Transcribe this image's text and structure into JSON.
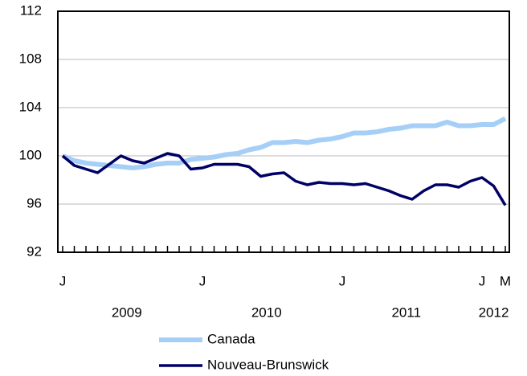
{
  "chart_data": {
    "type": "line",
    "categories": [
      "J",
      null,
      null,
      null,
      null,
      null,
      null,
      null,
      null,
      null,
      null,
      null,
      "J",
      null,
      null,
      null,
      null,
      null,
      null,
      null,
      null,
      null,
      null,
      null,
      "J",
      null,
      null,
      null,
      null,
      null,
      null,
      null,
      null,
      null,
      null,
      null,
      "J",
      null,
      "M"
    ],
    "x_groups": [
      "2009",
      "2010",
      "2011",
      "2012"
    ],
    "series": [
      {
        "name": "Canada",
        "color": "#a6cff7",
        "values": [
          100,
          99.6,
          99.4,
          99.3,
          99.2,
          99.1,
          99.0,
          99.1,
          99.3,
          99.4,
          99.4,
          99.7,
          99.8,
          99.9,
          100.1,
          100.2,
          100.5,
          100.7,
          101.1,
          101.1,
          101.2,
          101.1,
          101.3,
          101.4,
          101.6,
          101.9,
          101.9,
          102.0,
          102.2,
          102.3,
          102.5,
          102.5,
          102.5,
          102.8,
          102.5,
          102.5,
          102.6,
          102.6,
          103.1
        ]
      },
      {
        "name": "Nouveau-Brunswick",
        "color": "#000066",
        "values": [
          100,
          99.2,
          98.9,
          98.6,
          99.3,
          100.0,
          99.6,
          99.4,
          99.8,
          100.2,
          100.0,
          98.9,
          99.0,
          99.3,
          99.3,
          99.3,
          99.1,
          98.3,
          98.5,
          98.6,
          97.9,
          97.6,
          97.8,
          97.7,
          97.7,
          97.6,
          97.7,
          97.4,
          97.1,
          96.7,
          96.4,
          97.1,
          97.6,
          97.6,
          97.4,
          97.9,
          98.2,
          97.5,
          95.9
        ]
      }
    ],
    "ylim": [
      92,
      112
    ],
    "yticks": [
      92,
      96,
      100,
      104,
      108,
      112
    ],
    "grid": true
  }
}
